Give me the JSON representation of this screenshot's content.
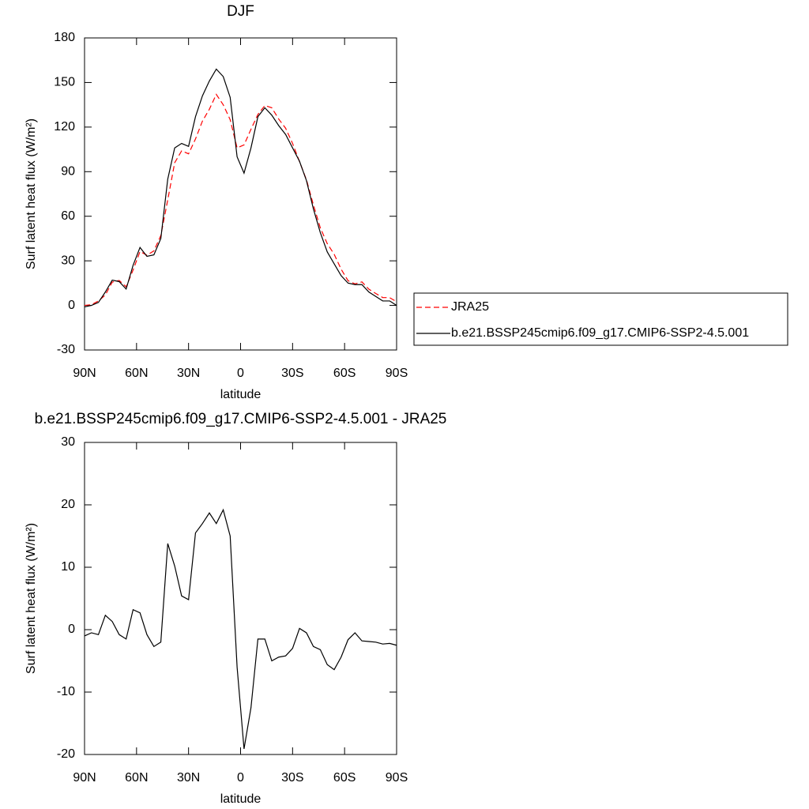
{
  "chart_data": [
    {
      "type": "line",
      "title": "DJF",
      "x_label": "latitude",
      "y_label": "Surf latent heat flux (W/m²)",
      "x": [
        90,
        86,
        82,
        78,
        74,
        70,
        66,
        62,
        58,
        54,
        50,
        46,
        42,
        38,
        34,
        30,
        26,
        22,
        18,
        14,
        10,
        6,
        2,
        -2,
        -6,
        -10,
        -14,
        -18,
        -22,
        -26,
        -30,
        -34,
        -38,
        -42,
        -46,
        -50,
        -54,
        -58,
        -62,
        -66,
        -70,
        -74,
        -78,
        -82,
        -86,
        -90
      ],
      "xlim": [
        90,
        -90
      ],
      "xticks": [
        {
          "value": 90,
          "label": "90N"
        },
        {
          "value": 60,
          "label": "60N"
        },
        {
          "value": 30,
          "label": "30N"
        },
        0,
        {
          "value": -30,
          "label": "30S"
        },
        {
          "value": -60,
          "label": "60S"
        },
        {
          "value": -90,
          "label": "90S"
        }
      ],
      "ylim": [
        -30,
        180
      ],
      "yticks": [
        -30,
        0,
        30,
        60,
        90,
        120,
        150,
        180
      ],
      "legend": "right",
      "series": [
        {
          "name": "JRA25",
          "color": "#ff0000",
          "dash": true,
          "values": [
            0,
            0.5,
            3,
            7,
            15.7,
            16.8,
            12.5,
            23.8,
            36.3,
            33.8,
            36.7,
            47,
            71,
            96,
            104,
            102,
            112,
            124,
            132,
            142,
            135,
            125,
            106,
            108,
            118.5,
            128.5,
            134.5,
            133,
            125.4,
            119.2,
            109,
            96.8,
            84.5,
            67.7,
            52.2,
            41.6,
            34.4,
            24.4,
            16.6,
            14.5,
            15.8,
            10.9,
            8,
            5.3,
            5.2,
            2.5
          ]
        },
        {
          "name": "b.e21.BSSP245cmip6.f09_g17.CMIP6-SSP2-4.5.001",
          "color": "#000000",
          "dash": false,
          "values": [
            -1,
            0,
            2,
            9,
            17,
            16,
            11,
            27,
            39,
            33,
            34,
            45,
            85,
            106,
            109,
            107,
            127,
            141,
            151,
            159,
            154,
            140,
            100,
            89,
            106,
            127,
            133,
            128,
            121,
            115,
            106,
            97,
            84,
            65,
            49,
            36,
            28,
            20,
            15,
            14,
            14,
            9,
            6,
            3,
            3,
            0
          ]
        }
      ]
    },
    {
      "type": "line",
      "title": "b.e21.BSSP245cmip6.f09_g17.CMIP6-SSP2-4.5.001 - JRA25",
      "x_label": "latitude",
      "y_label": "Surf latent heat flux (W/m²)",
      "x": [
        90,
        86,
        82,
        78,
        74,
        70,
        66,
        62,
        58,
        54,
        50,
        46,
        42,
        38,
        34,
        30,
        26,
        22,
        18,
        14,
        10,
        6,
        2,
        -2,
        -6,
        -10,
        -14,
        -18,
        -22,
        -26,
        -30,
        -34,
        -38,
        -42,
        -46,
        -50,
        -54,
        -58,
        -62,
        -66,
        -70,
        -74,
        -78,
        -82,
        -86,
        -90
      ],
      "xlim": [
        90,
        -90
      ],
      "xticks": [
        {
          "value": 90,
          "label": "90N"
        },
        {
          "value": 60,
          "label": "60N"
        },
        {
          "value": 30,
          "label": "30N"
        },
        0,
        {
          "value": -30,
          "label": "30S"
        },
        {
          "value": -60,
          "label": "60S"
        },
        {
          "value": -90,
          "label": "90S"
        }
      ],
      "ylim": [
        -20,
        30
      ],
      "yticks": [
        -20,
        -10,
        0,
        10,
        20,
        30
      ],
      "series": [
        {
          "color": "#000000",
          "dash": false,
          "values": [
            -1,
            -0.5,
            -0.8,
            2.3,
            1.3,
            -0.8,
            -1.5,
            3.2,
            2.7,
            -0.8,
            -2.7,
            -2,
            13.8,
            10.2,
            5.4,
            4.8,
            15.5,
            17,
            18.7,
            17,
            19.2,
            15,
            -6,
            -19.1,
            -12.5,
            -1.5,
            -1.5,
            -5,
            -4.4,
            -4.2,
            -3,
            0.2,
            -0.5,
            -2.7,
            -3.2,
            -5.6,
            -6.4,
            -4.4,
            -1.6,
            -0.5,
            -1.8,
            -1.9,
            -2,
            -2.3,
            -2.2,
            -2.5
          ]
        }
      ]
    }
  ]
}
